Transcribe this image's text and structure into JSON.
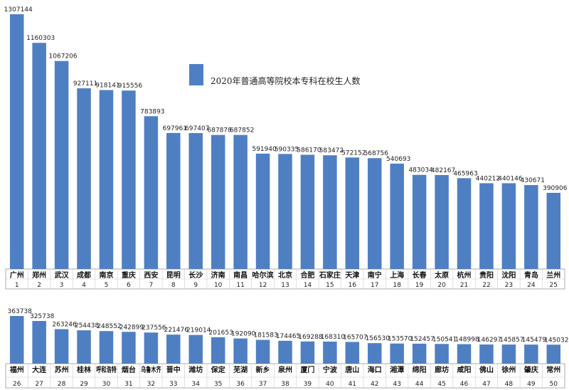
{
  "chart_data": [
    {
      "type": "bar",
      "legend": "2020年普通高等院校本专科在校生人数",
      "legend_position": "top-center",
      "bar_color": "#4f7fc3",
      "grid": false,
      "ylim": [
        0,
        1307144
      ],
      "categories": [
        "广州",
        "郑州",
        "武汉",
        "成都",
        "南京",
        "重庆",
        "西安",
        "昆明",
        "长沙",
        "济南",
        "南昌",
        "哈尔滨",
        "北京",
        "合肥",
        "石家庄",
        "天津",
        "南宁",
        "上海",
        "长春",
        "太原",
        "杭州",
        "贵阳",
        "沈阳",
        "青岛",
        "兰州"
      ],
      "ranks": [
        "1",
        "2",
        "3",
        "4",
        "5",
        "6",
        "7",
        "8",
        "9",
        "10",
        "11",
        "12",
        "13",
        "14",
        "15",
        "16",
        "17",
        "18",
        "19",
        "20",
        "21",
        "22",
        "23",
        "24",
        "25"
      ],
      "values": [
        1307144,
        1160303,
        1067206,
        927111,
        918141,
        915556,
        783893,
        697961,
        697407,
        687878,
        687852,
        591940,
        590335,
        586170,
        583472,
        572152,
        568756,
        540693,
        483034,
        482167,
        465963,
        440212,
        440146,
        430671,
        390906
      ]
    },
    {
      "type": "bar",
      "bar_color": "#4f7fc3",
      "grid": false,
      "ylim": [
        0,
        363738
      ],
      "categories": [
        "福州",
        "大连",
        "苏州",
        "桂林",
        "呼和浩特",
        "烟台",
        "乌鲁木齐",
        "晋中",
        "潍坊",
        "保定",
        "芜湖",
        "新乡",
        "泉州",
        "厦门",
        "宁波",
        "唐山",
        "海口",
        "湘潭",
        "绵阳",
        "廊坊",
        "咸阳",
        "佛山",
        "徐州",
        "肇庆",
        "常州"
      ],
      "ranks": [
        "26",
        "27",
        "28",
        "29",
        "30",
        "31",
        "32",
        "33",
        "34",
        "35",
        "36",
        "37",
        "38",
        "39",
        "40",
        "41",
        "42",
        "43",
        "44",
        "45",
        "46",
        "47",
        "48",
        "49",
        "50"
      ],
      "values": [
        363738,
        325738,
        263246,
        254438,
        248552,
        242899,
        237556,
        221476,
        219014,
        201653,
        192090,
        181583,
        174465,
        169288,
        168310,
        165707,
        156530,
        153570,
        152457,
        150541,
        148998,
        146297,
        145857,
        145479,
        145032
      ]
    }
  ]
}
